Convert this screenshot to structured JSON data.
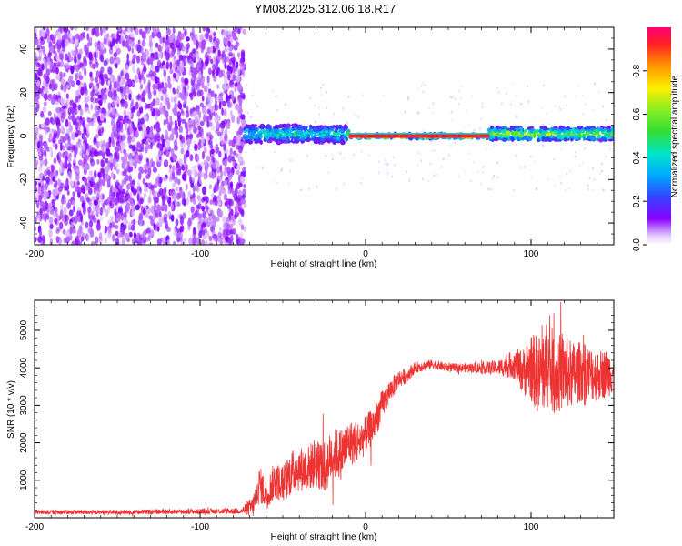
{
  "title": "YM08.2025.312.06.18.R17",
  "colors": {
    "background": "#ffffff",
    "axis": "#000000",
    "snr_line": "#ee3333"
  },
  "chart_data": [
    {
      "type": "heatmap",
      "name": "spectrogram",
      "xlabel": "Height of straight line (km)",
      "ylabel": "Frequency (Hz)",
      "xlim": [
        -200,
        150
      ],
      "ylim": [
        -50,
        50
      ],
      "xticks": [
        "-200",
        "-100",
        "0",
        "100"
      ],
      "yticks": [
        "40",
        "20",
        "0",
        "-20",
        "-40"
      ],
      "regions": [
        {
          "x_from": -200,
          "x_to": -73,
          "f_from": -50,
          "f_to": 50,
          "description": "noise",
          "typical_amplitude": 0.05
        },
        {
          "x_from": -73,
          "x_to": -10,
          "center_hz": 1,
          "half_width_hz": 4,
          "typical_amplitude": 0.5
        },
        {
          "x_from": -10,
          "x_to": 75,
          "center_hz": 0,
          "half_width_hz": 1,
          "typical_amplitude": 1.0
        },
        {
          "x_from": 75,
          "x_to": 150,
          "center_hz": 1,
          "half_width_hz": 3,
          "typical_amplitude": 0.7
        }
      ],
      "colorbar": {
        "label": "Normalized spectral amplitude",
        "range": [
          0,
          1
        ],
        "ticks": [
          "0.0",
          "0.2",
          "0.4",
          "0.6",
          "0.8"
        ]
      }
    },
    {
      "type": "line",
      "name": "snr",
      "xlabel": "Height of straight line (km)",
      "ylabel": "SNR (10 * v/v)",
      "xlim": [
        -200,
        150
      ],
      "ylim": [
        0,
        5800
      ],
      "xticks": [
        "-200",
        "-100",
        "0",
        "100"
      ],
      "yticks": [
        "1000",
        "2000",
        "3000",
        "4000",
        "5000"
      ],
      "series": [
        {
          "name": "SNR",
          "x": [
            -200,
            -150,
            -100,
            -75,
            -68,
            -64,
            -60,
            -55,
            -50,
            -45,
            -40,
            -35,
            -30,
            -25,
            -20,
            -15,
            -10,
            -5,
            0,
            5,
            10,
            15,
            20,
            25,
            30,
            40,
            50,
            60,
            70,
            80,
            90,
            95,
            100,
            105,
            110,
            115,
            120,
            125,
            130,
            140,
            150
          ],
          "y": [
            150,
            150,
            170,
            180,
            300,
            900,
            600,
            1000,
            900,
            1200,
            1300,
            1300,
            1500,
            1300,
            1700,
            1700,
            2000,
            2000,
            2200,
            2500,
            3000,
            3400,
            3700,
            3800,
            4000,
            4100,
            4000,
            4000,
            4000,
            4000,
            4100,
            3900,
            4000,
            3800,
            4100,
            3800,
            3900,
            3800,
            3900,
            3800,
            3900
          ],
          "noise_amplitude": [
            60,
            60,
            70,
            80,
            300,
            500,
            400,
            500,
            500,
            600,
            600,
            600,
            700,
            700,
            700,
            700,
            600,
            600,
            500,
            500,
            400,
            300,
            250,
            200,
            150,
            120,
            120,
            120,
            150,
            200,
            400,
            600,
            900,
            1100,
            1200,
            1100,
            1000,
            900,
            800,
            700,
            600
          ]
        }
      ]
    }
  ]
}
